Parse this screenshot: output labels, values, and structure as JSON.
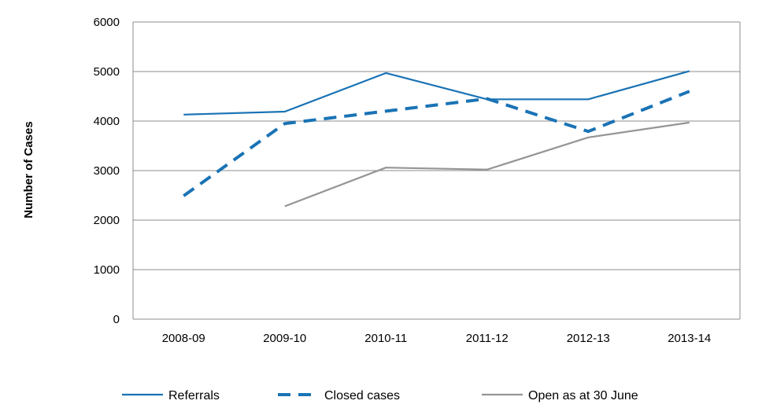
{
  "chart_data": {
    "type": "line",
    "title": "",
    "xlabel": "",
    "ylabel": "Number of Cases",
    "categories": [
      "2008-09",
      "2009-10",
      "2010-11",
      "2011-12",
      "2012-13",
      "2013-14"
    ],
    "ylim": [
      0,
      6000
    ],
    "yticks": [
      0,
      1000,
      2000,
      3000,
      4000,
      5000,
      6000
    ],
    "grid": "horizontal",
    "legend_position": "bottom",
    "series": [
      {
        "name": "Referrals",
        "values": [
          4130,
          4190,
          4970,
          4440,
          4440,
          5010
        ],
        "color": "#1a73b5",
        "style": "solid"
      },
      {
        "name": "Closed cases",
        "values": [
          2490,
          3950,
          4200,
          4450,
          3790,
          4600
        ],
        "color": "#1a73b5",
        "style": "dashed"
      },
      {
        "name": "Open as at 30 June",
        "values": [
          null,
          2280,
          3060,
          3020,
          3670,
          3970
        ],
        "color": "#959595",
        "style": "solid"
      }
    ]
  }
}
